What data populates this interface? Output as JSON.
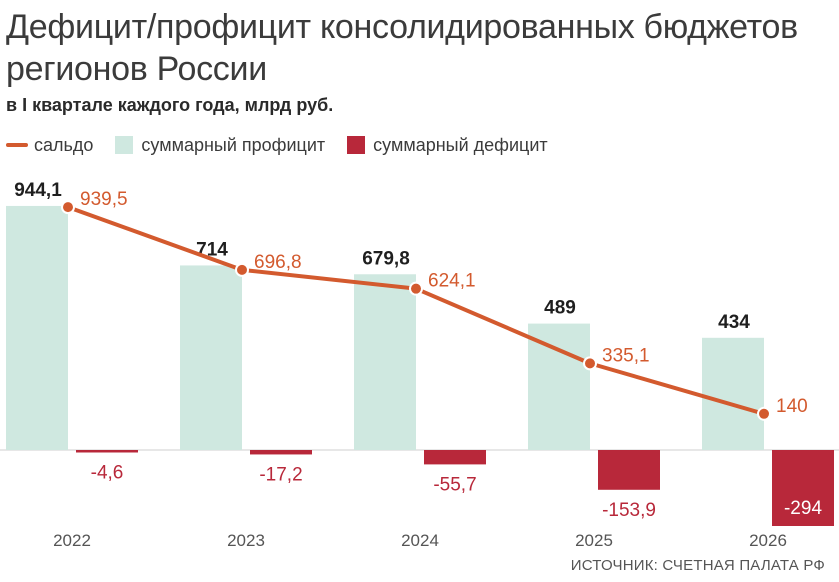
{
  "title": "Дефицит/профицит консолидированных бюджетов регионов России",
  "subtitle": "в I квартале каждого года, млрд руб.",
  "legend": {
    "balance": "сальдо",
    "surplus": "суммарный профицит",
    "deficit": "суммарный дефицит"
  },
  "colors": {
    "balance": "#d35a2e",
    "surplus": "#cfe8e0",
    "deficit": "#b8283a"
  },
  "source": "ИСТОЧНИК: СЧЕТНАЯ ПАЛАТА РФ",
  "chart_data": {
    "type": "bar",
    "categories": [
      "2022",
      "2023",
      "2024",
      "2025",
      "2026"
    ],
    "series": [
      {
        "name": "суммарный профицит",
        "type": "bar",
        "values": [
          944.1,
          714,
          679.8,
          489,
          434
        ],
        "labels": [
          "944,1",
          "714",
          "679,8",
          "489",
          "434"
        ]
      },
      {
        "name": "суммарный дефицит",
        "type": "bar",
        "values": [
          -4.6,
          -17.2,
          -55.7,
          -153.9,
          -294
        ],
        "labels": [
          "-4,6",
          "-17,2",
          "-55,7",
          "-153,9",
          "-294"
        ]
      },
      {
        "name": "сальдо",
        "type": "line",
        "values": [
          939.5,
          696.8,
          624.1,
          335.1,
          140
        ],
        "labels": [
          "939,5",
          "696,8",
          "624,1",
          "335,1",
          "140"
        ]
      }
    ],
    "grid": false
  }
}
